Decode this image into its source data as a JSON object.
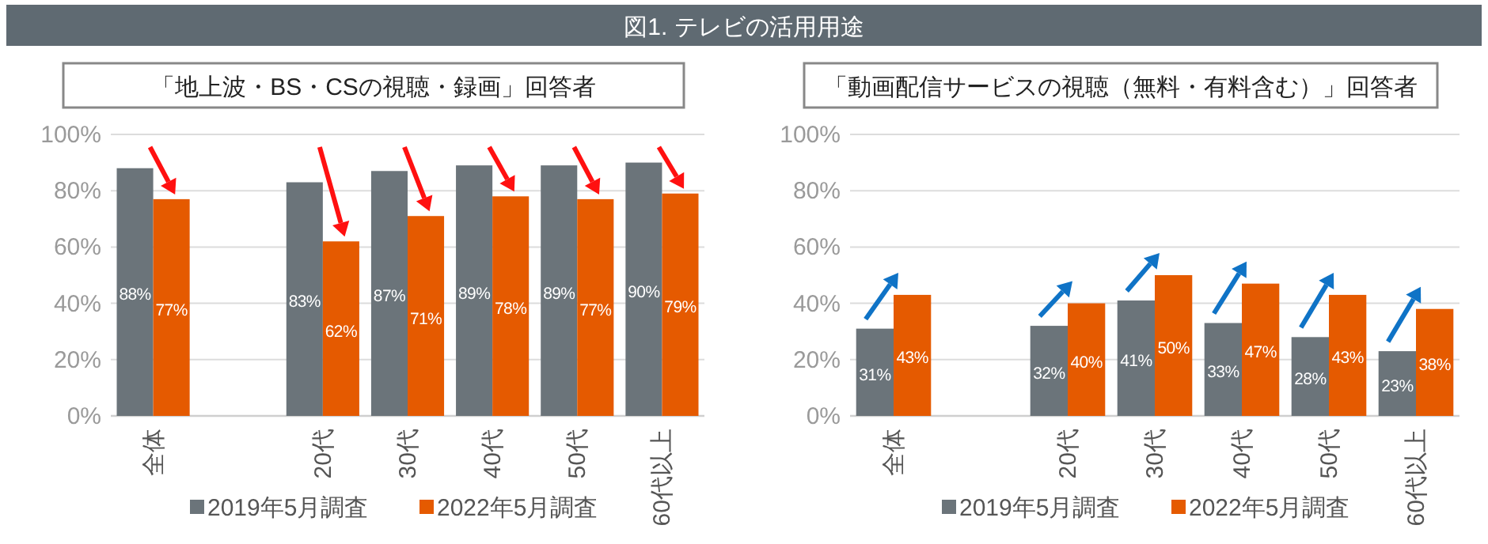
{
  "chart_data": [
    {
      "type": "bar",
      "title": "「地上波・BS・CSの視聴・録画」回答者",
      "annotations": [
        "図1. テレビの活用用途"
      ],
      "categories": [
        "全体",
        null,
        "20代",
        "30代",
        "40代",
        "50代",
        "60代以上"
      ],
      "series": [
        {
          "name": "2019年5月調査",
          "color": "#6b747a",
          "values": [
            88,
            null,
            83,
            87,
            89,
            89,
            90
          ],
          "value_labels": [
            "88%",
            null,
            "83%",
            "87%",
            "89%",
            "89%",
            "90%"
          ]
        },
        {
          "name": "2022年5月調査",
          "color": "#e55a00",
          "values": [
            77,
            null,
            62,
            71,
            78,
            77,
            79
          ],
          "value_labels": [
            "77%",
            null,
            "62%",
            "71%",
            "78%",
            "77%",
            "79%"
          ]
        }
      ],
      "ylim": [
        0,
        100
      ],
      "yticks": [
        {
          "value": 0,
          "label": "0%"
        },
        {
          "value": 20,
          "label": "20%"
        },
        {
          "value": 40,
          "label": "40%"
        },
        {
          "value": 60,
          "label": "60%"
        },
        {
          "value": 80,
          "label": "80%"
        },
        {
          "value": 100,
          "label": "100%"
        }
      ],
      "grid": "y",
      "legend": "bottom"
    },
    {
      "type": "bar",
      "title": "「動画配信サービスの視聴（無料・有料含む）」回答者",
      "categories": [
        "全体",
        null,
        "20代",
        "30代",
        "40代",
        "50代",
        "60代以上"
      ],
      "series": [
        {
          "name": "2019年5月調査",
          "color": "#6b747a",
          "values": [
            31,
            null,
            32,
            41,
            33,
            28,
            23
          ],
          "value_labels": [
            "31%",
            null,
            "32%",
            "41%",
            "33%",
            "28%",
            "23%"
          ]
        },
        {
          "name": "2022年5月調査",
          "color": "#e55a00",
          "values": [
            43,
            null,
            40,
            50,
            47,
            43,
            38
          ],
          "value_labels": [
            "43%",
            null,
            "40%",
            "50%",
            "47%",
            "43%",
            "38%"
          ]
        }
      ],
      "ylim": [
        0,
        100
      ],
      "yticks": [
        {
          "value": 0,
          "label": "0%"
        },
        {
          "value": 20,
          "label": "20%"
        },
        {
          "value": 40,
          "label": "40%"
        },
        {
          "value": 60,
          "label": "60%"
        },
        {
          "value": 80,
          "label": "80%"
        },
        {
          "value": 100,
          "label": "100%"
        }
      ],
      "grid": "y",
      "legend": "bottom"
    }
  ]
}
